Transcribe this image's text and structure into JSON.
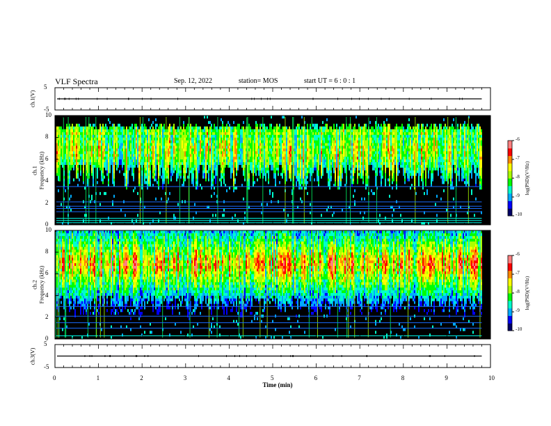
{
  "header": {
    "title": "VLF Spectra",
    "date": "Sep. 12, 2022",
    "station": "station= MOS",
    "start_ut": "start UT =  6 : 0 : 1"
  },
  "chart_data": [
    {
      "type": "line",
      "title": "",
      "ylabel": "ch.1(V)",
      "xlabel": "",
      "xlim": [
        0,
        10
      ],
      "ylim": [
        -5,
        5
      ],
      "yticks": [
        "5",
        "-5"
      ],
      "description_series": [
        {
          "x": [
            0,
            9.8
          ],
          "y": [
            0,
            0
          ]
        }
      ]
    },
    {
      "type": "heatmap",
      "ylabel_lines": [
        "ch.1",
        "Frequency (kHz)"
      ],
      "xlim": [
        0,
        10
      ],
      "ylim": [
        0,
        10
      ],
      "yticks": [
        "0",
        "2",
        "4",
        "6",
        "8",
        "10"
      ],
      "data_end_min": 9.8,
      "dominant_band_khz": [
        3,
        9
      ],
      "lower_edge_khz": [
        3,
        5
      ],
      "colorbar": {
        "label": "log(PSD)(V²/Hz)",
        "range": [
          -10,
          -6
        ],
        "ticks": [
          "-6",
          "-7",
          "-8",
          "-9",
          "-10"
        ]
      },
      "narrowband_lines_khz": [
        0.2,
        0.4,
        0.6,
        1.2,
        1.5,
        1.7,
        2.1,
        3.5
      ]
    },
    {
      "type": "heatmap",
      "ylabel_lines": [
        "ch.2",
        "Frequency (kHz)"
      ],
      "xlim": [
        0,
        10
      ],
      "ylim": [
        0,
        10
      ],
      "yticks": [
        "0",
        "2",
        "4",
        "6",
        "8",
        "10"
      ],
      "data_end_min": 9.8,
      "dominant_band_khz": [
        2,
        10
      ],
      "peak_band_khz": [
        5.5,
        8
      ],
      "colorbar": {
        "label": "log(PSD)(V²/Hz)",
        "range": [
          -10,
          -6
        ],
        "ticks": [
          "-6",
          "-7",
          "-8",
          "-9",
          "-10"
        ]
      },
      "narrowband_lines_khz": [
        0.3,
        1.0,
        1.5,
        2.1,
        3.0
      ]
    },
    {
      "type": "line",
      "title": "",
      "ylabel": "ch.3(V)",
      "xlim": [
        0,
        10
      ],
      "ylim": [
        -5,
        5
      ],
      "yticks": [
        "5",
        "-5"
      ],
      "xlabel": "Time (min)",
      "xticks": [
        "0",
        "1",
        "2",
        "3",
        "4",
        "5",
        "6",
        "7",
        "8",
        "9",
        "10"
      ],
      "description_series": [
        {
          "x": [
            0,
            9.8
          ],
          "y": [
            0,
            0
          ]
        }
      ]
    }
  ],
  "colors": {
    "colormap": [
      "#000066",
      "#0000ff",
      "#00aaff",
      "#00ffcc",
      "#00ff00",
      "#aaff00",
      "#ffff00",
      "#ff8800",
      "#ff0000",
      "#ff8080",
      "#ffffff"
    ],
    "background": "#000000",
    "axis": "#000000"
  }
}
